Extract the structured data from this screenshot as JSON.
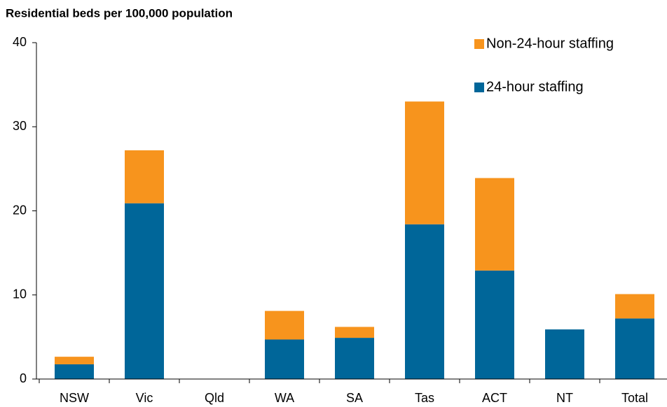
{
  "chart_data": {
    "type": "stacked_bar",
    "title": "Residential beds per 100,000 population",
    "categories": [
      "NSW",
      "Vic",
      "Qld",
      "WA",
      "SA",
      "Tas",
      "ACT",
      "NT",
      "Total"
    ],
    "series": [
      {
        "name": "24-hour staffing",
        "color": "#006699",
        "values": [
          1.75,
          20.9,
          null,
          4.7,
          4.9,
          18.4,
          12.9,
          5.9,
          7.2
        ]
      },
      {
        "name": "Non-24-hour staffing",
        "color": "#f7941d",
        "values": [
          0.9,
          6.3,
          null,
          3.4,
          1.3,
          14.6,
          11.0,
          0,
          2.9
        ]
      }
    ],
    "ylim": [
      0,
      40
    ],
    "yticks": [
      0,
      10,
      20,
      30,
      40
    ],
    "legend": "top-right"
  }
}
